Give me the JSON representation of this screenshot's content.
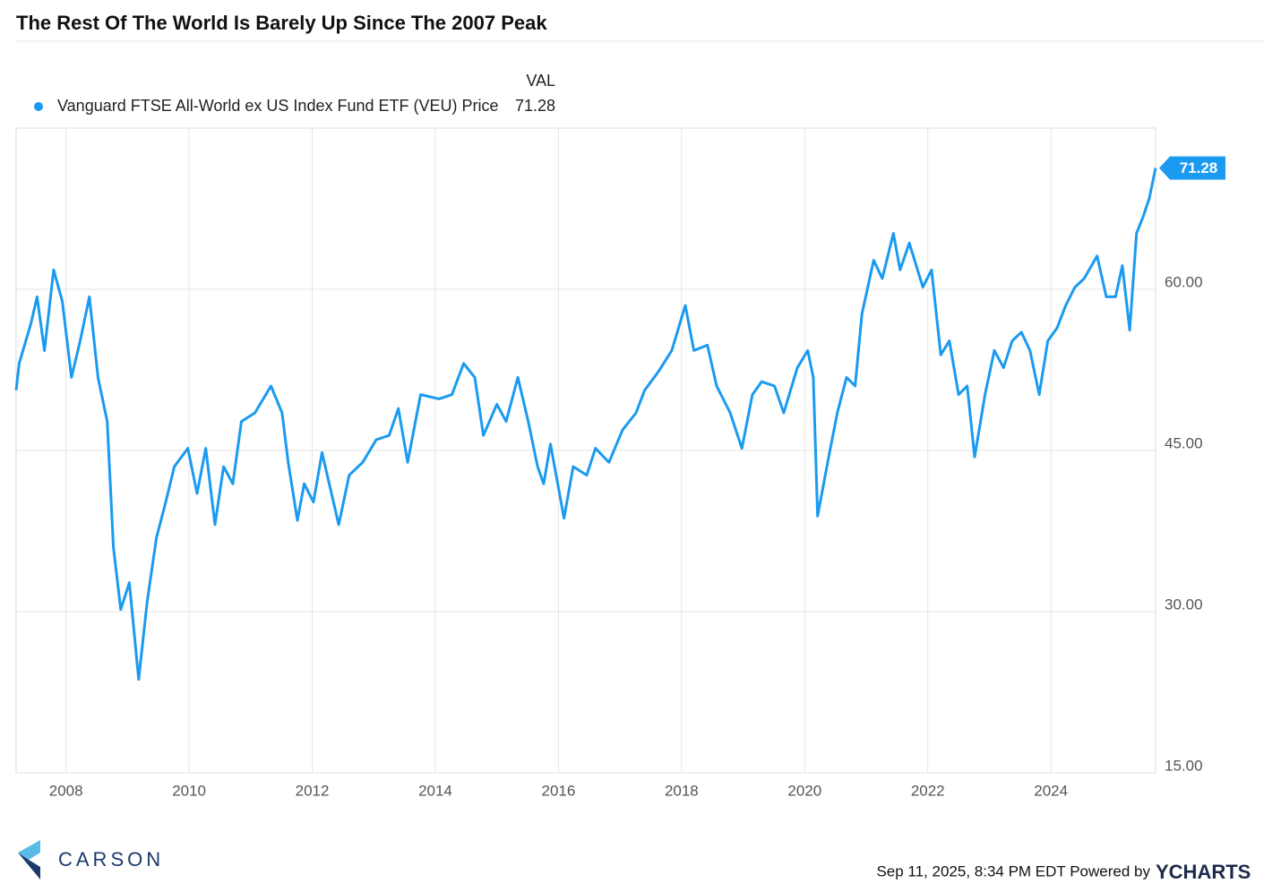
{
  "chart_data": {
    "type": "line",
    "title": "The Rest Of The World Is Barely Up Since The 2007 Peak",
    "legend_header": "VAL",
    "legend": "top-left",
    "last_value_label": "71.28",
    "footer": "Sep 11, 2025, 8:34 PM EDT Powered by",
    "brand": "YCHARTS",
    "logo": "CARSON",
    "grid": true,
    "xlim": [
      2007.19,
      2025.7
    ],
    "xticks": [
      2008,
      2010,
      2012,
      2014,
      2016,
      2018,
      2020,
      2022,
      2024
    ],
    "ylim": [
      15,
      75
    ],
    "yticks": [
      {
        "value": 15,
        "label": "15.00"
      },
      {
        "value": 30,
        "label": "30.00"
      },
      {
        "value": 45,
        "label": "45.00"
      },
      {
        "value": 60,
        "label": "60.00"
      }
    ],
    "x": [
      2007.19,
      2007.24,
      2007.43,
      2007.53,
      2007.65,
      2007.8,
      2007.94,
      2008.09,
      2008.23,
      2008.38,
      2008.52,
      2008.67,
      2008.77,
      2008.89,
      2009.03,
      2009.18,
      2009.32,
      2009.47,
      2009.62,
      2009.76,
      2009.98,
      2010.13,
      2010.27,
      2010.42,
      2010.56,
      2010.71,
      2010.85,
      2011.07,
      2011.33,
      2011.51,
      2011.61,
      2011.76,
      2011.87,
      2012.02,
      2012.16,
      2012.43,
      2012.6,
      2012.82,
      2013.04,
      2013.25,
      2013.4,
      2013.55,
      2013.76,
      2014.06,
      2014.27,
      2014.46,
      2014.64,
      2014.78,
      2015.0,
      2015.15,
      2015.34,
      2015.51,
      2015.66,
      2015.76,
      2015.87,
      2016.09,
      2016.24,
      2016.46,
      2016.6,
      2016.82,
      2017.04,
      2017.26,
      2017.4,
      2017.62,
      2017.84,
      2018.06,
      2018.2,
      2018.42,
      2018.57,
      2018.79,
      2018.98,
      2019.15,
      2019.3,
      2019.51,
      2019.66,
      2019.88,
      2020.05,
      2020.14,
      2020.21,
      2020.39,
      2020.53,
      2020.68,
      2020.82,
      2020.93,
      2021.12,
      2021.26,
      2021.44,
      2021.55,
      2021.7,
      2021.92,
      2022.06,
      2022.21,
      2022.35,
      2022.5,
      2022.64,
      2022.76,
      2022.93,
      2023.08,
      2023.23,
      2023.37,
      2023.52,
      2023.66,
      2023.81,
      2023.95,
      2024.1,
      2024.24,
      2024.39,
      2024.54,
      2024.75,
      2024.9,
      2025.05,
      2025.16,
      2025.28,
      2025.39,
      2025.5,
      2025.6,
      2025.7
    ],
    "series": [
      {
        "name": "Vanguard FTSE All-World ex US Index Fund ETF (VEU) Price",
        "color": "#1a9af0",
        "last_label": "71.28",
        "values": [
          50.6,
          53.1,
          56.8,
          59.3,
          54.3,
          61.8,
          58.9,
          51.8,
          55.2,
          59.3,
          51.8,
          47.7,
          36.0,
          30.2,
          32.7,
          23.7,
          31.0,
          36.9,
          40.2,
          43.5,
          45.2,
          41.0,
          45.2,
          38.1,
          43.5,
          41.9,
          47.7,
          48.5,
          51.0,
          48.5,
          43.9,
          38.5,
          41.9,
          40.2,
          44.8,
          38.1,
          42.7,
          43.9,
          46.0,
          46.4,
          48.9,
          43.9,
          50.2,
          49.8,
          50.2,
          53.1,
          51.8,
          46.4,
          49.3,
          47.7,
          51.8,
          47.7,
          43.5,
          41.9,
          45.6,
          38.7,
          43.5,
          42.7,
          45.2,
          43.9,
          46.9,
          48.5,
          50.6,
          52.3,
          54.3,
          58.5,
          54.3,
          54.8,
          51.0,
          48.5,
          45.2,
          50.2,
          51.4,
          51.0,
          48.5,
          52.7,
          54.3,
          51.8,
          38.9,
          44.4,
          48.5,
          51.8,
          51.0,
          57.7,
          62.7,
          61.0,
          65.2,
          61.8,
          64.3,
          60.2,
          61.8,
          53.9,
          55.2,
          50.2,
          51.0,
          44.4,
          50.2,
          54.3,
          52.7,
          55.2,
          56.0,
          54.3,
          50.2,
          55.2,
          56.4,
          58.5,
          60.2,
          61.0,
          63.1,
          59.3,
          59.3,
          62.2,
          56.2,
          65.2,
          66.8,
          68.5,
          71.28
        ]
      }
    ]
  }
}
